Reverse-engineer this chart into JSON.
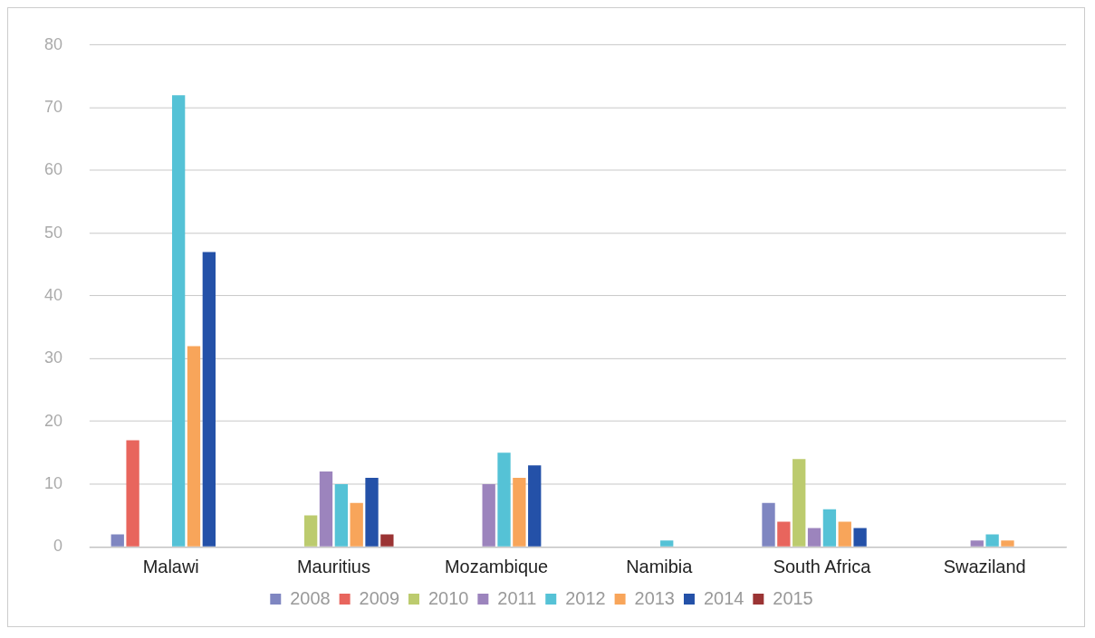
{
  "chart_data": {
    "type": "bar",
    "categories": [
      "Malawi",
      "Mauritius",
      "Mozambique",
      "Namibia",
      "South Africa",
      "Swaziland"
    ],
    "series": [
      {
        "name": "2008",
        "color": "#7f86c1",
        "values": [
          2,
          null,
          null,
          null,
          7,
          null
        ]
      },
      {
        "name": "2009",
        "color": "#e8655d",
        "values": [
          17,
          null,
          null,
          null,
          4,
          null
        ]
      },
      {
        "name": "2010",
        "color": "#bccb6e",
        "values": [
          null,
          5,
          null,
          null,
          14,
          null
        ]
      },
      {
        "name": "2011",
        "color": "#9c84bd",
        "values": [
          null,
          12,
          10,
          null,
          3,
          1
        ]
      },
      {
        "name": "2012",
        "color": "#55c2d6",
        "values": [
          72,
          10,
          15,
          1,
          6,
          2
        ]
      },
      {
        "name": "2013",
        "color": "#f8a55a",
        "values": [
          32,
          7,
          11,
          null,
          4,
          1
        ]
      },
      {
        "name": "2014",
        "color": "#2451a8",
        "values": [
          47,
          11,
          13,
          null,
          3,
          null
        ]
      },
      {
        "name": "2015",
        "color": "#9b3434",
        "values": [
          null,
          2,
          null,
          null,
          null,
          null
        ]
      }
    ],
    "ylim": [
      0,
      80
    ],
    "yticks": [
      0,
      10,
      20,
      30,
      40,
      50,
      60,
      70,
      80
    ],
    "grid": "y",
    "legend": "bottom"
  }
}
